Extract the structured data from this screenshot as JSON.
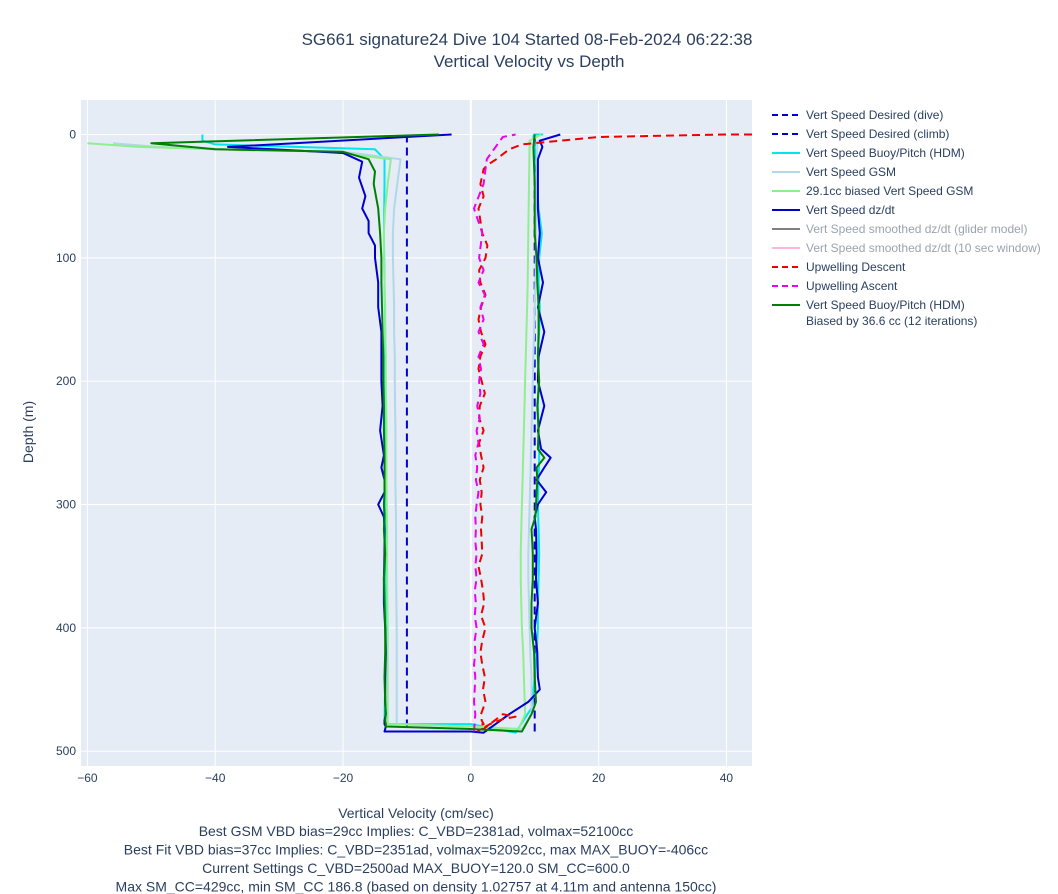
{
  "chart_data": {
    "type": "line",
    "title": "SG661 signature24 Dive 104 Started 08-Feb-2024 06:22:38",
    "subtitle": "Vertical Velocity vs Depth",
    "xlabel": "Vertical Velocity (cm/sec)",
    "ylabel": "Depth (m)",
    "xlim": [
      -61,
      44
    ],
    "ylim": [
      512,
      -28
    ],
    "y_reversed": true,
    "grid": true,
    "legend_position": "right",
    "x_ticks": [
      -60,
      -40,
      -20,
      0,
      20,
      40
    ],
    "y_ticks": [
      0,
      100,
      200,
      300,
      400,
      500
    ],
    "x_tick_labels": [
      "−60",
      "−40",
      "−20",
      "0",
      "20",
      "40"
    ],
    "y_tick_labels": [
      "0",
      "100",
      "200",
      "300",
      "400",
      "500"
    ],
    "footer_lines": [
      "Best GSM VBD bias=29cc Implies: C_VBD=2381ad, volmax=52100cc",
      "Best Fit VBD bias=37cc Implies: C_VBD=2351ad, volmax=52092cc, max MAX_BUOY=-406cc",
      "Current Settings C_VBD=2500ad MAX_BUOY=120.0 SM_CC=600.0",
      "Max SM_CC=429cc, min SM_CC 186.8 (based on density 1.02757 at 4.11m and antenna 150cc)"
    ],
    "series": [
      {
        "name": "Vert Speed Desired (dive)",
        "color": "#0000cd",
        "dash": "dash",
        "width": 2,
        "x": [
          -10,
          -10
        ],
        "y": [
          0,
          484
        ]
      },
      {
        "name": "Vert Speed Desired (climb)",
        "color": "#0000cd",
        "dash": "dash",
        "width": 2,
        "x": [
          10,
          10
        ],
        "y": [
          484,
          0
        ]
      },
      {
        "name": "Vert Speed Buoy/Pitch (HDM)",
        "color": "#00e5ee",
        "dash": "solid",
        "width": 2,
        "x": [
          -42,
          -42,
          -40,
          -15,
          -13.5,
          -13.5,
          -13.6,
          -13.5,
          -13.4,
          -13.5,
          -13.5,
          -13.4,
          -13.3,
          -13.3,
          -13.2,
          -13.3,
          -13.3,
          -13.2,
          -13.3,
          -13.4,
          -13.5,
          0,
          7,
          9.5,
          10,
          10.3,
          10.5,
          10.5,
          10.6,
          10.7,
          10.6,
          10.5,
          10.6,
          10.7,
          10.6,
          10.5,
          10.6,
          10.5,
          10.7,
          10.8,
          10.6,
          10.7,
          11.1,
          10.6,
          10.3,
          10.2,
          10,
          9.9,
          9.8,
          9.9,
          10.1,
          10.3,
          10.6,
          10.8,
          11.2,
          11
        ],
        "y": [
          0,
          5,
          8,
          12,
          20,
          40,
          80,
          120,
          160,
          200,
          240,
          270,
          300,
          320,
          340,
          360,
          380,
          400,
          420,
          440,
          478,
          478,
          485,
          465,
          440,
          420,
          400,
          380,
          360,
          340,
          320,
          300,
          280,
          260,
          240,
          220,
          200,
          180,
          160,
          140,
          120,
          100,
          80,
          60,
          40,
          20,
          10,
          5,
          2,
          0,
          0,
          0,
          0,
          0,
          0,
          0
        ]
      },
      {
        "name": "Vert Speed GSM",
        "color": "#b0d8e8",
        "dash": "solid",
        "width": 2,
        "x": [
          -56,
          -49,
          -38,
          -20,
          -11,
          -11.5,
          -12,
          -12.2,
          -12.2,
          -12.1,
          -12,
          -12,
          -11.9,
          -11.9,
          -11.8,
          -11.8,
          -11.7,
          -11.7,
          -11.6,
          -11.6,
          -11.6,
          -11.6,
          0,
          8,
          9.5,
          9.5,
          9.3,
          9.2,
          9.1,
          9.0,
          9.0,
          9.1,
          9.2,
          9.3,
          9.4,
          9.5,
          9.6,
          9.7,
          9.8,
          9.9,
          10,
          10.1,
          10.2,
          10.3,
          10.4
        ],
        "y": [
          7,
          10,
          12,
          14,
          20,
          40,
          60,
          80,
          100,
          120,
          140,
          160,
          180,
          200,
          240,
          280,
          320,
          360,
          400,
          440,
          470,
          478,
          480,
          482,
          470,
          440,
          420,
          400,
          380,
          360,
          340,
          320,
          300,
          280,
          260,
          240,
          220,
          200,
          180,
          160,
          140,
          120,
          80,
          40,
          5
        ]
      },
      {
        "name": "29.1cc biased Vert Speed GSM",
        "color": "#90ee90",
        "dash": "solid",
        "width": 2,
        "x": [
          -60,
          -52,
          -40,
          -22,
          -12.5,
          -13,
          -13.4,
          -13.6,
          -13.6,
          -13.5,
          -13.4,
          -13.4,
          -13.3,
          -13.3,
          -13.2,
          -13.2,
          -13.1,
          -13.1,
          -13,
          -13,
          -13,
          -13,
          0,
          7.5,
          8.5,
          8.3,
          8.2,
          8.0,
          7.9,
          7.8,
          7.8,
          7.9,
          8.0,
          8.1,
          8.2,
          8.3,
          8.4,
          8.5,
          8.6,
          8.7,
          8.8,
          8.9,
          9.0,
          9.1,
          9.2,
          11
        ],
        "y": [
          7,
          10,
          12,
          14,
          20,
          40,
          60,
          80,
          100,
          120,
          140,
          160,
          180,
          200,
          240,
          280,
          320,
          360,
          400,
          440,
          470,
          478,
          480,
          482,
          470,
          440,
          420,
          400,
          380,
          360,
          340,
          320,
          300,
          280,
          260,
          240,
          220,
          200,
          180,
          160,
          140,
          120,
          80,
          40,
          5,
          0
        ]
      },
      {
        "name": "Vert Speed dz/dt",
        "color": "#0000cd",
        "dash": "solid",
        "width": 2,
        "x": [
          -3,
          -38,
          -20,
          -17,
          -17.5,
          -16.5,
          -17,
          -16,
          -16,
          -15,
          -15,
          -14.5,
          -14.5,
          -14,
          -14,
          -14,
          -13.8,
          -14.2,
          -13.6,
          -14,
          -13.5,
          -13.5,
          -14.5,
          -13.6,
          -13.5,
          -13.5,
          -13.6,
          -13.6,
          -13.4,
          -13.3,
          -13.4,
          -13.4,
          -13.3,
          -13.5,
          -13.5,
          -13.3,
          -13.4,
          -13.5,
          0,
          2,
          6,
          9,
          10.8,
          10.5,
          10.4,
          10,
          10.5,
          10.2,
          10.3,
          10.2,
          10.0,
          10.5,
          11.8,
          10.3,
          11.5,
          12.5,
          11,
          10.5,
          11.5,
          10.5,
          10.6,
          11.5,
          10.5,
          11.3,
          10.5,
          10.8,
          10.5,
          10.5,
          10.5,
          11.2,
          10.8,
          14
        ],
        "y": [
          0,
          10,
          15,
          22,
          35,
          50,
          60,
          70,
          80,
          90,
          100,
          120,
          140,
          160,
          180,
          200,
          220,
          240,
          260,
          270,
          280,
          290,
          300,
          310,
          320,
          340,
          360,
          380,
          400,
          420,
          440,
          460,
          470,
          475,
          478,
          480,
          482,
          484,
          484,
          485,
          470,
          460,
          450,
          440,
          420,
          400,
          380,
          360,
          340,
          320,
          310,
          300,
          290,
          280,
          270,
          262,
          255,
          240,
          220,
          200,
          180,
          160,
          140,
          120,
          100,
          80,
          60,
          40,
          20,
          10,
          5,
          0
        ]
      },
      {
        "name": "Vert Speed smoothed dz/dt (glider model)",
        "color": "#808080",
        "dash": "solid",
        "width": 2,
        "hidden": true,
        "x": [],
        "y": []
      },
      {
        "name": "Vert Speed smoothed dz/dt (10 sec window)",
        "color": "#ffb6e0",
        "dash": "solid",
        "width": 2,
        "hidden": true,
        "x": [],
        "y": []
      },
      {
        "name": "Upwelling Descent",
        "color": "#ee0000",
        "dash": "dash",
        "width": 2,
        "x": [
          44,
          40,
          20,
          8,
          6,
          4,
          2.5,
          2,
          1.5,
          2,
          1.2,
          1.5,
          1.8,
          2.6,
          2.3,
          1.3,
          1.5,
          2.3,
          1.6,
          1.2,
          1.6,
          2.3,
          1.5,
          1.2,
          1.7,
          2.2,
          1.4,
          1.3,
          2,
          1.3,
          1.6,
          2,
          1.4,
          1.7,
          1.5,
          1.8,
          1.6,
          1.7,
          1.8,
          1.2,
          1.6,
          1.9,
          2.1,
          1.6,
          2.3,
          1.8,
          1.5,
          1.8,
          2.2,
          1.9,
          2.3,
          1.6,
          1.7,
          2.0,
          1.8,
          2.0,
          1.7,
          1.7,
          2.0,
          5,
          7,
          5,
          3,
          1
        ],
        "y": [
          0,
          0,
          2,
          8,
          12,
          20,
          25,
          28,
          40,
          50,
          60,
          70,
          80,
          90,
          100,
          110,
          120,
          130,
          140,
          150,
          160,
          170,
          180,
          190,
          200,
          210,
          220,
          230,
          240,
          250,
          260,
          270,
          280,
          290,
          300,
          310,
          320,
          330,
          340,
          350,
          360,
          370,
          380,
          390,
          400,
          410,
          420,
          430,
          440,
          450,
          460,
          470,
          475,
          478,
          478,
          480,
          480,
          482,
          482,
          470,
          472,
          474,
          478,
          484
        ]
      },
      {
        "name": "Upwelling Ascent",
        "color": "#ee00ee",
        "dash": "dash",
        "width": 2,
        "x": [
          0.5,
          0.7,
          0.5,
          0.6,
          0.7,
          0.5,
          0.7,
          0.6,
          0.9,
          0.6,
          0.8,
          0.6,
          0.9,
          0.7,
          0.9,
          0.7,
          0.8,
          0.7,
          0.9,
          1.2,
          0.8,
          1.0,
          0.7,
          1.2,
          0.9,
          1.4,
          1.0,
          1.5,
          1.3,
          1.6,
          1.2,
          2.0,
          1.2,
          2.0,
          1.5,
          2.2,
          1.2,
          2.0,
          1.3,
          1.8,
          0.5,
          2.0,
          2.5,
          5,
          7
        ],
        "y": [
          484,
          470,
          460,
          450,
          440,
          430,
          420,
          410,
          400,
          390,
          380,
          370,
          360,
          350,
          340,
          330,
          320,
          310,
          300,
          290,
          280,
          270,
          260,
          250,
          240,
          230,
          220,
          210,
          200,
          190,
          180,
          170,
          160,
          150,
          140,
          130,
          120,
          110,
          100,
          80,
          60,
          40,
          20,
          2,
          0
        ]
      },
      {
        "name": "Vert Speed Buoy/Pitch (HDM)\nBiased by 36.6 cc (12 iterations)",
        "color": "#008000",
        "dash": "solid",
        "width": 2,
        "x": [
          -5,
          -50,
          -40,
          -20,
          -16,
          -15,
          -15.2,
          -14.5,
          -14.2,
          -14,
          -14,
          -13.9,
          -13.8,
          -13.7,
          -13.7,
          -13.6,
          -13.6,
          -13.5,
          -13.5,
          -13.5,
          -13.5,
          -13.6,
          -13.5,
          -13.6,
          -13.4,
          -13.6,
          -13.5,
          -13.4,
          -13.4,
          -13.5,
          -13.4,
          -13.3,
          -13.4,
          -13.3,
          -13.3,
          -13.2,
          0,
          8,
          9.5,
          10.2,
          10.0,
          9.9,
          9.5,
          9.5,
          9.7,
          9.7,
          9.6,
          9.5,
          10.1,
          10.2,
          10.4,
          10.3,
          11.5,
          10.5,
          10.6,
          10.4,
          10.7,
          10.5,
          10.6,
          10.6,
          10.4,
          10.3,
          10,
          10,
          9.8,
          10
        ],
        "y": [
          0,
          7,
          12,
          14,
          20,
          30,
          40,
          60,
          80,
          100,
          120,
          140,
          160,
          180,
          200,
          220,
          240,
          260,
          270,
          280,
          290,
          300,
          310,
          320,
          340,
          360,
          380,
          400,
          420,
          440,
          460,
          470,
          475,
          478,
          480,
          480,
          482,
          484,
          470,
          460,
          440,
          420,
          400,
          380,
          360,
          340,
          330,
          320,
          310,
          300,
          280,
          270,
          262,
          255,
          240,
          220,
          200,
          180,
          160,
          140,
          120,
          100,
          80,
          40,
          10,
          0
        ]
      }
    ]
  },
  "colors": {
    "plot_bg": "#e5ecf6",
    "grid": "#ffffff",
    "text": "#2a3f5f",
    "legend_faded_text": "#9aa3ad"
  }
}
